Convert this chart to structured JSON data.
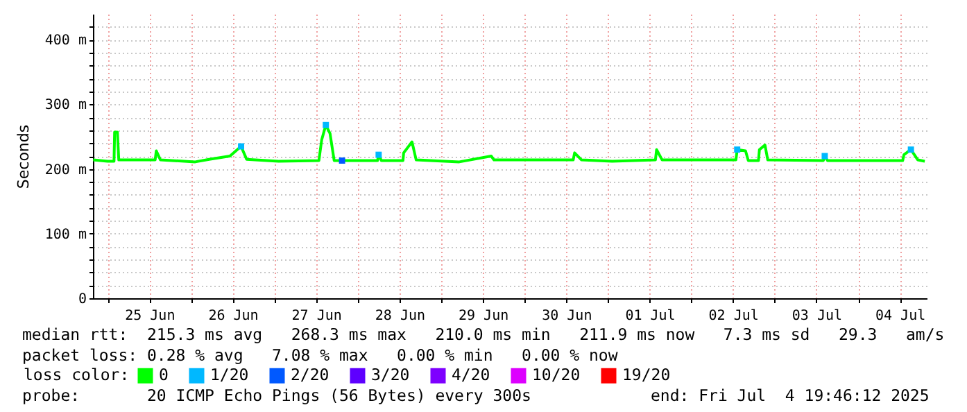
{
  "chart_data": {
    "type": "line",
    "ylabel": "Seconds",
    "legend_title": "loss color:",
    "legend": "bottom",
    "grid": true,
    "xlim": [
      "2025-06-24T19:46",
      "2025-07-04T19:46"
    ],
    "xticks": [
      {
        "value": "2025-06-25T00:00",
        "label": null
      },
      {
        "value": "2025-06-25T12:00",
        "label": "25 Jun"
      },
      {
        "value": "2025-06-26T00:00",
        "label": null
      },
      {
        "value": "2025-06-26T12:00",
        "label": "26 Jun"
      },
      {
        "value": "2025-06-27T00:00",
        "label": null
      },
      {
        "value": "2025-06-27T12:00",
        "label": "27 Jun"
      },
      {
        "value": "2025-06-28T00:00",
        "label": null
      },
      {
        "value": "2025-06-28T12:00",
        "label": "28 Jun"
      },
      {
        "value": "2025-06-29T00:00",
        "label": null
      },
      {
        "value": "2025-06-29T12:00",
        "label": "29 Jun"
      },
      {
        "value": "2025-06-30T00:00",
        "label": null
      },
      {
        "value": "2025-06-30T12:00",
        "label": "30 Jun"
      },
      {
        "value": "2025-07-01T00:00",
        "label": null
      },
      {
        "value": "2025-07-01T12:00",
        "label": "01 Jul"
      },
      {
        "value": "2025-07-02T00:00",
        "label": null
      },
      {
        "value": "2025-07-02T12:00",
        "label": "02 Jul"
      },
      {
        "value": "2025-07-03T00:00",
        "label": null
      },
      {
        "value": "2025-07-03T12:00",
        "label": "03 Jul"
      },
      {
        "value": "2025-07-04T00:00",
        "label": null
      },
      {
        "value": "2025-07-04T12:00",
        "label": "04 Jul"
      }
    ],
    "ylim": [
      0,
      440
    ],
    "yticks": [
      0,
      {
        "value": 20,
        "label": null
      },
      {
        "value": 40,
        "label": null
      },
      {
        "value": 60,
        "label": null
      },
      {
        "value": 80,
        "label": null
      },
      {
        "value": 100,
        "label": "100 m"
      },
      {
        "value": 120,
        "label": null
      },
      {
        "value": 140,
        "label": null
      },
      {
        "value": 160,
        "label": null
      },
      {
        "value": 180,
        "label": null
      },
      {
        "value": 200,
        "label": "200 m"
      },
      {
        "value": 220,
        "label": null
      },
      {
        "value": 240,
        "label": null
      },
      {
        "value": 260,
        "label": null
      },
      {
        "value": 280,
        "label": null
      },
      {
        "value": 300,
        "label": "300 m"
      },
      {
        "value": 320,
        "label": null
      },
      {
        "value": 340,
        "label": null
      },
      {
        "value": 360,
        "label": null
      },
      {
        "value": 380,
        "label": null
      },
      {
        "value": 400,
        "label": "400 m"
      },
      {
        "value": 420,
        "label": null
      }
    ],
    "series": [
      {
        "name": "0",
        "color": "#00ff00",
        "x": [
          "2025-06-24T19:50",
          "2025-06-25T00:00",
          "2025-06-25T01:50",
          "2025-06-25T02:00",
          "2025-06-25T02:48",
          "2025-06-25T03:12",
          "2025-06-25T13:40",
          "2025-06-25T14:00",
          "2025-06-25T15:12",
          "2025-06-26T01:12",
          "2025-06-26T05:12",
          "2025-06-26T11:12",
          "2025-06-26T14:24",
          "2025-06-26T16:00",
          "2025-06-27T01:12",
          "2025-06-27T12:48",
          "2025-06-27T13:36",
          "2025-06-27T14:48",
          "2025-06-27T16:00",
          "2025-06-27T17:12",
          "2025-06-28T05:40",
          "2025-06-28T06:00",
          "2025-06-28T06:48",
          "2025-06-28T13:00",
          "2025-06-28T13:12",
          "2025-06-28T15:36",
          "2025-06-28T16:48",
          "2025-06-29T05:12",
          "2025-06-29T14:24",
          "2025-06-29T15:12",
          "2025-06-30T14:00",
          "2025-06-30T14:24",
          "2025-06-30T16:24",
          "2025-07-01T01:12",
          "2025-07-01T13:40",
          "2025-07-01T14:00",
          "2025-07-01T15:36",
          "2025-07-02T12:50",
          "2025-07-02T13:12",
          "2025-07-02T15:36",
          "2025-07-02T16:24",
          "2025-07-02T19:20",
          "2025-07-02T19:36",
          "2025-07-02T21:12",
          "2025-07-02T22:00",
          "2025-07-03T14:00",
          "2025-07-03T14:24",
          "2025-07-03T15:12",
          "2025-07-04T12:50",
          "2025-07-04T13:12",
          "2025-07-04T15:12",
          "2025-07-04T17:12",
          "2025-07-04T19:12"
        ],
        "values": [
          214,
          212,
          212,
          257,
          257,
          214,
          214,
          228,
          214,
          211,
          215,
          220,
          235,
          215,
          212,
          213,
          245,
          268,
          255,
          213,
          213,
          222,
          213,
          213,
          225,
          242,
          214,
          211,
          220,
          214,
          214,
          225,
          214,
          212,
          214,
          230,
          214,
          214,
          230,
          228,
          213,
          213,
          230,
          237,
          214,
          213,
          220,
          213,
          213,
          222,
          230,
          214,
          212
        ]
      },
      {
        "name": "1/20",
        "type": "scatter",
        "color": "#00b8ff",
        "x": [
          "2025-06-26T14:24",
          "2025-06-27T14:48",
          "2025-06-28T06:00",
          "2025-07-02T13:12",
          "2025-07-03T14:24",
          "2025-07-04T15:12"
        ],
        "values": [
          235,
          268,
          222,
          230,
          220,
          230
        ]
      },
      {
        "name": "2/20",
        "type": "scatter",
        "color": "#0059ff",
        "x": [
          "2025-06-27T19:28"
        ],
        "values": [
          213
        ]
      },
      {
        "name": "3/20",
        "type": "scatter",
        "color": "#5e00ff"
      },
      {
        "name": "4/20",
        "type": "scatter",
        "color": "#7e00ff"
      },
      {
        "name": "10/20",
        "type": "scatter",
        "color": "#dd00ff"
      },
      {
        "name": "19/20",
        "type": "scatter",
        "color": "#ff0000"
      }
    ],
    "annotations": [
      "median rtt:  215.3 ms avg   268.3 ms max   210.0 ms min   211.9 ms now   7.3 ms sd   29.3   am/s",
      "packet loss: 0.28 % avg   7.08 % max   0.00 % min   0.00 % now",
      "probe:       20 ICMP Echo Pings (56 Bytes) every 300s",
      "end: Fri Jul  4 19:46:12 2025"
    ]
  }
}
